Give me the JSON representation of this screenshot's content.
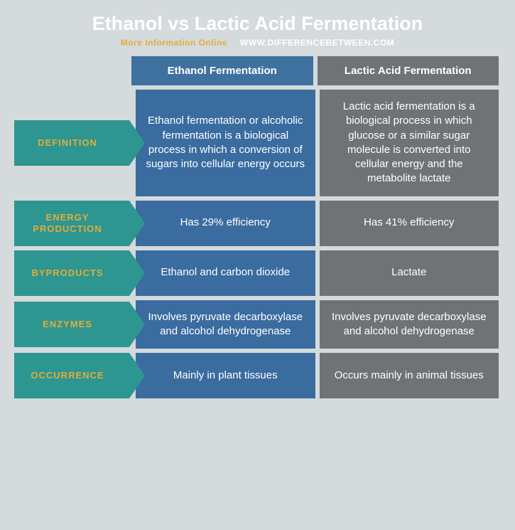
{
  "header": {
    "title": "Ethanol vs Lactic Acid Fermentation",
    "more_info": "More Information Online",
    "site": "WWW.DIFFERENCEBETWEEN.COM"
  },
  "columns": {
    "col1": "Ethanol Fermentation",
    "col2": "Lactic Acid Fermentation"
  },
  "rows": [
    {
      "label": "DEFINITION",
      "col1": "Ethanol fermentation or alcoholic fermentation is a biological process in which a conversion of sugars into cellular energy occurs",
      "col2": "Lactic acid fermentation is a biological process in which glucose or a similar sugar molecule is converted into cellular energy and the metabolite lactate"
    },
    {
      "label": "ENERGY PRODUCTION",
      "col1": "Has 29% efficiency",
      "col2": "Has 41% efficiency"
    },
    {
      "label": "BYPRODUCTS",
      "col1": "Ethanol and carbon dioxide",
      "col2": "Lactate"
    },
    {
      "label": "ENZYMES",
      "col1": "Involves pyruvate decarboxylase and alcohol dehydrogenase",
      "col2": "Involves pyruvate decarboxylase and alcohol dehydrogenase"
    },
    {
      "label": "OCCURRENCE",
      "col1": "Mainly in plant tissues",
      "col2": "Occurs mainly in animal tissues"
    }
  ],
  "colors": {
    "page_bg": "#d5dadc",
    "title_color": "#ffffff",
    "more_info_color": "#e2ad3b",
    "site_color": "#ffffff",
    "arrow_bg": "#2d9690",
    "arrow_text": "#e2ad3b",
    "col1_head_bg": "#3e71a0",
    "col2_head_bg": "#6f7375",
    "col1_head_text": "#ffffff",
    "col2_head_text": "#ffffff",
    "col1_cell_bg": "#3a6ca0",
    "col2_cell_bg": "#6f7375",
    "cell_text": "#ffffff"
  }
}
